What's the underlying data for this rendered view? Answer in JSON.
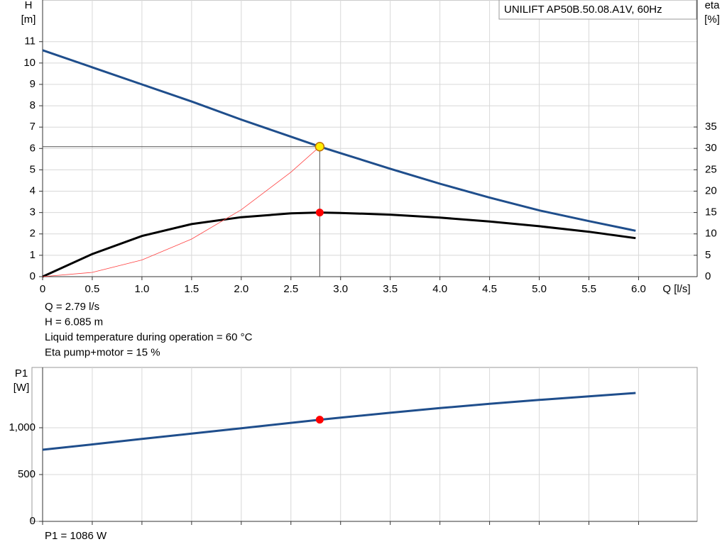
{
  "chart_data": [
    {
      "type": "line",
      "title": "UNILIFT AP50B.50.08.A1V, 60Hz",
      "x_label": "Q [l/s]",
      "y_label": [
        "H",
        "[m]"
      ],
      "y2_label": [
        "eta",
        "[%]"
      ],
      "x": [
        0,
        0.5,
        1.0,
        1.5,
        2.0,
        2.5,
        2.79,
        3.0,
        3.5,
        4.0,
        4.5,
        5.0,
        5.5,
        5.97
      ],
      "series": [
        {
          "color": "#1f4e8c",
          "width": 3,
          "values": [
            10.6,
            9.8,
            9.0,
            8.2,
            7.35,
            6.55,
            6.085,
            5.78,
            5.05,
            4.35,
            3.7,
            3.1,
            2.6,
            2.15
          ]
        },
        {
          "color": "#000000",
          "width": 3,
          "axis": "y2",
          "values": [
            0,
            5.3,
            9.5,
            12.3,
            13.9,
            14.8,
            15,
            14.9,
            14.5,
            13.8,
            12.9,
            11.8,
            10.5,
            9.0
          ]
        },
        {
          "color": "#ff4040",
          "width": 0.8,
          "values": [
            0,
            0.2,
            0.78,
            1.76,
            3.13,
            4.89,
            6.085,
            null,
            null,
            null,
            null,
            null,
            null,
            null
          ]
        }
      ],
      "operating_point": {
        "x": 2.79,
        "y": 6.085,
        "y2": 15
      },
      "guides": true,
      "xlim": [
        0,
        6.59
      ],
      "xticks": [
        0,
        0.5,
        {
          "value": 1,
          "label": "1.0"
        },
        1.5,
        {
          "value": 2,
          "label": "2.0"
        },
        2.5,
        {
          "value": 3,
          "label": "3.0"
        },
        3.5,
        {
          "value": 4,
          "label": "4.0"
        },
        4.5,
        {
          "value": 5,
          "label": "5.0"
        },
        5.5,
        {
          "value": 6,
          "label": "6.0"
        }
      ],
      "ylim": [
        0,
        12.95
      ],
      "yticks": [
        0,
        1,
        2,
        3,
        4,
        5,
        6,
        7,
        8,
        9,
        10,
        11
      ],
      "y2lim": [
        0,
        64.7
      ],
      "y2ticks": [
        0,
        5,
        10,
        15,
        20,
        25,
        30,
        35
      ],
      "grid": true,
      "annotations": [
        "Q = 2.79 l/s",
        "H = 6.085 m",
        "Liquid temperature during operation = 60 °C",
        "Eta pump+motor = 15 %"
      ]
    },
    {
      "type": "line",
      "y_label": [
        "P1",
        "[W]"
      ],
      "x": [
        0,
        0.5,
        1.0,
        1.5,
        2.0,
        2.5,
        2.79,
        3.0,
        3.5,
        4.0,
        4.5,
        5.0,
        5.5,
        5.97
      ],
      "series": [
        {
          "color": "#1f4e8c",
          "width": 3,
          "values": [
            765,
            822,
            880,
            937,
            995,
            1052,
            1086,
            1108,
            1160,
            1210,
            1255,
            1297,
            1336,
            1371
          ]
        }
      ],
      "operating_point": {
        "x": 2.79,
        "y": 1086
      },
      "guides": false,
      "xlim": [
        0,
        6.59
      ],
      "xticks": [
        0,
        0.5,
        1,
        1.5,
        2,
        2.5,
        3,
        3.5,
        4,
        4.5,
        5,
        5.5,
        6
      ],
      "xtick_labels": false,
      "ylim": [
        0,
        1644
      ],
      "yticks": [
        0,
        500,
        {
          "value": 1000,
          "label": "1,000"
        }
      ],
      "grid": true,
      "annotations": [
        "P1 = 1086 W"
      ]
    }
  ]
}
